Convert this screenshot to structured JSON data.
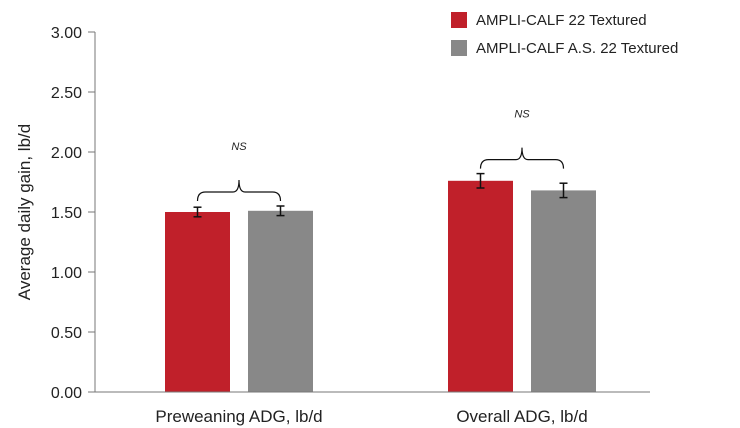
{
  "chart_data": {
    "type": "bar",
    "categories": [
      "Preweaning ADG, lb/d",
      "Overall ADG, lb/d"
    ],
    "series": [
      {
        "name": "AMPLI-CALF 22 Textured",
        "color": "#c0202a",
        "values": [
          1.5,
          1.76
        ],
        "errors": [
          0.04,
          0.06
        ]
      },
      {
        "name": "AMPLI-CALF A.S. 22 Textured",
        "color": "#888888",
        "values": [
          1.51,
          1.68
        ],
        "errors": [
          0.04,
          0.06
        ]
      }
    ],
    "ylabel": "Average daily gain, lb/d",
    "ylim": [
      0,
      3
    ],
    "yticks": [
      "0.00",
      "0.50",
      "1.00",
      "1.50",
      "2.00",
      "2.50",
      "3.00"
    ],
    "annotations": [
      "NS",
      "NS"
    ],
    "legend_position": "top-right",
    "grid": false
  }
}
